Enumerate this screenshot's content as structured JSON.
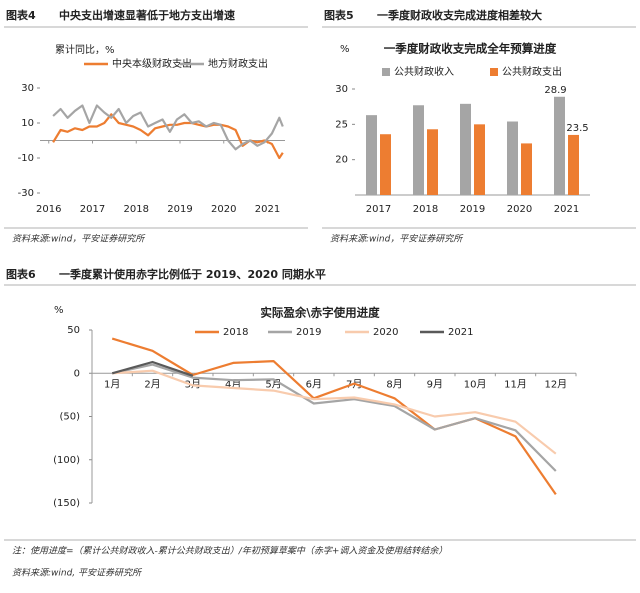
{
  "chart_data": [
    {
      "type": "line",
      "figure": "图表4",
      "title": "中央支出增速显著低于地方支出增速",
      "y_label": "累计同比，%",
      "x": [
        2016.1,
        2016.27,
        2016.43,
        2016.6,
        2016.77,
        2016.93,
        2017.1,
        2017.27,
        2017.43,
        2017.6,
        2017.77,
        2017.93,
        2018.1,
        2018.27,
        2018.43,
        2018.6,
        2018.77,
        2018.93,
        2019.1,
        2019.27,
        2019.43,
        2019.6,
        2019.77,
        2019.93,
        2020.1,
        2020.27,
        2020.43,
        2020.6,
        2020.77,
        2020.93,
        2021.1,
        2021.27,
        2021.35
      ],
      "xlim": [
        2015.8,
        2021.4
      ],
      "xticks": [
        2016,
        2017,
        2018,
        2019,
        2020,
        2021
      ],
      "ylim": [
        -30,
        30
      ],
      "yticks": [
        30,
        10,
        -10,
        -30
      ],
      "series": [
        {
          "name": "中央本级财政支出",
          "color": "#ed7d31",
          "values": [
            -1,
            6,
            5,
            7,
            6,
            8,
            8,
            10,
            15,
            10,
            9,
            8,
            6,
            3,
            7,
            8,
            9,
            9,
            10,
            10,
            9,
            8,
            9,
            9,
            8,
            6,
            -3,
            0,
            -1,
            0,
            -2,
            -10,
            -7
          ]
        },
        {
          "name": "地方财政支出",
          "color": "#a5a5a5",
          "values": [
            14,
            18,
            13,
            17,
            20,
            10,
            20,
            16,
            13,
            18,
            10,
            14,
            16,
            8,
            10,
            12,
            5,
            12,
            15,
            10,
            11,
            8,
            10,
            9,
            0,
            -5,
            -2,
            0,
            -3,
            -1,
            4,
            13,
            8
          ]
        }
      ],
      "source": "资料来源:wind，平安证券研究所"
    },
    {
      "type": "bar",
      "figure": "图表5",
      "title": "一季度财政收支完成进度相差较大",
      "subtitle": "一季度财政收支完成全年预算进度",
      "y_label": "%",
      "categories": [
        "2017",
        "2018",
        "2019",
        "2020",
        "2021"
      ],
      "ylim": [
        15,
        30
      ],
      "yticks": [
        20,
        25,
        30
      ],
      "series": [
        {
          "name": "公共财政收入",
          "color": "#a5a5a5",
          "values": [
            26.3,
            27.7,
            27.9,
            25.4,
            28.9
          ]
        },
        {
          "name": "公共财政支出",
          "color": "#ed7d31",
          "values": [
            23.6,
            24.3,
            25.0,
            22.3,
            23.5
          ]
        }
      ],
      "source": "资料来源:wind，平安证券研究所"
    },
    {
      "type": "line",
      "figure": "图表6",
      "title": "一季度累计使用赤字比例低于 2019、2020 同期水平",
      "subtitle": "实际盈余\\赤字使用进度",
      "y_label": "%",
      "categories": [
        "1月",
        "2月",
        "3月",
        "4月",
        "5月",
        "6月",
        "7月",
        "8月",
        "9月",
        "10月",
        "11月",
        "12月"
      ],
      "ylim": [
        -150,
        50
      ],
      "yticks": [
        50,
        0,
        {
          "value": -50,
          "label": "(50)"
        },
        {
          "value": -100,
          "label": "(100)"
        },
        {
          "value": -150,
          "label": "(150)"
        }
      ],
      "negative_tick_color": "#c00000",
      "series": [
        {
          "name": "2018",
          "color": "#ed7d31",
          "values": [
            40,
            26,
            -2,
            12,
            14,
            -29,
            -12,
            -29,
            -65,
            -52,
            -73,
            -140
          ]
        },
        {
          "name": "2019",
          "color": "#a5a5a5",
          "values": [
            0,
            10,
            -5,
            -8,
            -7,
            -35,
            -30,
            -38,
            -65,
            -52,
            -66,
            -113
          ]
        },
        {
          "name": "2020",
          "color": "#f8cbad",
          "values": [
            0,
            3,
            -14,
            -17,
            -20,
            -30,
            -28,
            -36,
            -50,
            -45,
            -56,
            -93
          ]
        },
        {
          "name": "2021",
          "color": "#595959",
          "values": [
            0,
            13,
            -3,
            null,
            null,
            null,
            null,
            null,
            null,
            null,
            null,
            null
          ]
        }
      ],
      "note": "注：使用进度=（累计公共财政收入-累计公共财政支出）/年初预算草案中（赤字+调入资金及使用结转结余）",
      "source": "资料来源:wind, 平安证券研究所"
    }
  ]
}
